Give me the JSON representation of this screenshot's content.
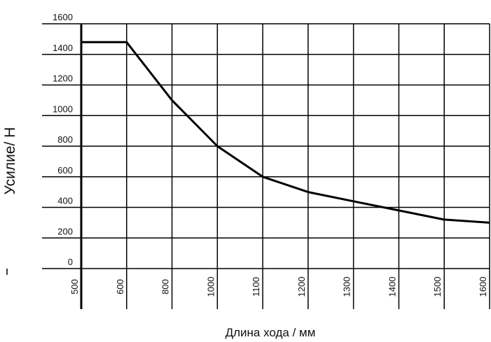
{
  "chart_data": {
    "type": "line",
    "title": "",
    "note_top_left": "",
    "xlabel": "Длина хода / мм",
    "ylabel": "Усилие/ Н",
    "x_tick_labels": [
      "500",
      "600",
      "800",
      "1000",
      "1100",
      "1200",
      "1300",
      "1400",
      "1500",
      "1600"
    ],
    "y_tick_labels": [
      "0",
      "200",
      "400",
      "600",
      "800",
      "1000",
      "1200",
      "1400",
      "1600"
    ],
    "ylim": [
      0,
      1600
    ],
    "grid": true,
    "legend": "none",
    "line_color": "#000000",
    "series": [
      {
        "x": [
          "500",
          "600",
          "800",
          "1000",
          "1100",
          "1200",
          "1300",
          "1400",
          "1500",
          "1600"
        ],
        "values": [
          1480,
          1480,
          1100,
          800,
          600,
          500,
          440,
          380,
          320,
          300
        ]
      }
    ]
  }
}
